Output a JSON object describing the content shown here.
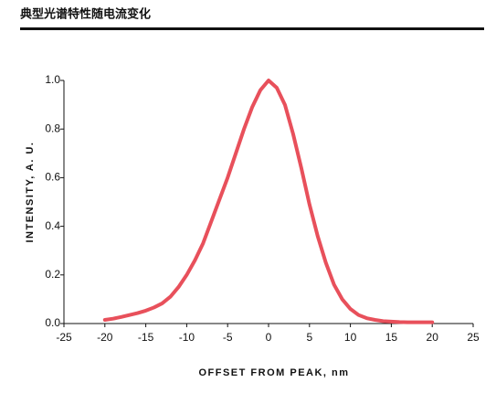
{
  "chart_data": {
    "type": "line",
    "title": "典型光谱特性随电流变化",
    "x_label": "OFFSET FROM PEAK, nm",
    "y_label": "INTENSITY, A. U.",
    "x": [
      -20,
      -19,
      -18,
      -17,
      -16,
      -15,
      -14,
      -13,
      -12,
      -11,
      -10,
      -9,
      -8,
      -7,
      -6,
      -5,
      -4,
      -3,
      -2,
      -1,
      0,
      1,
      2,
      3,
      4,
      5,
      6,
      7,
      8,
      9,
      10,
      11,
      12,
      13,
      14,
      15,
      16,
      17,
      18,
      19,
      20
    ],
    "series": [
      {
        "color": "#e8505b",
        "values": [
          0.015,
          0.02,
          0.027,
          0.035,
          0.043,
          0.053,
          0.066,
          0.083,
          0.11,
          0.15,
          0.2,
          0.26,
          0.33,
          0.42,
          0.51,
          0.6,
          0.7,
          0.8,
          0.89,
          0.96,
          1.0,
          0.97,
          0.9,
          0.78,
          0.64,
          0.49,
          0.36,
          0.25,
          0.16,
          0.1,
          0.06,
          0.035,
          0.022,
          0.015,
          0.01,
          0.008,
          0.006,
          0.005,
          0.005,
          0.005,
          0.005
        ]
      }
    ],
    "xlim": [
      -25,
      25
    ],
    "xticks": [
      -25,
      -20,
      -15,
      -10,
      -5,
      0,
      5,
      10,
      15,
      20,
      25
    ],
    "ylim": [
      0,
      1
    ],
    "yticks": [
      {
        "value": 0,
        "label": "0.0"
      },
      0.2,
      0.4,
      0.6,
      0.8,
      {
        "value": 1,
        "label": "1.0"
      }
    ],
    "grid": false
  }
}
